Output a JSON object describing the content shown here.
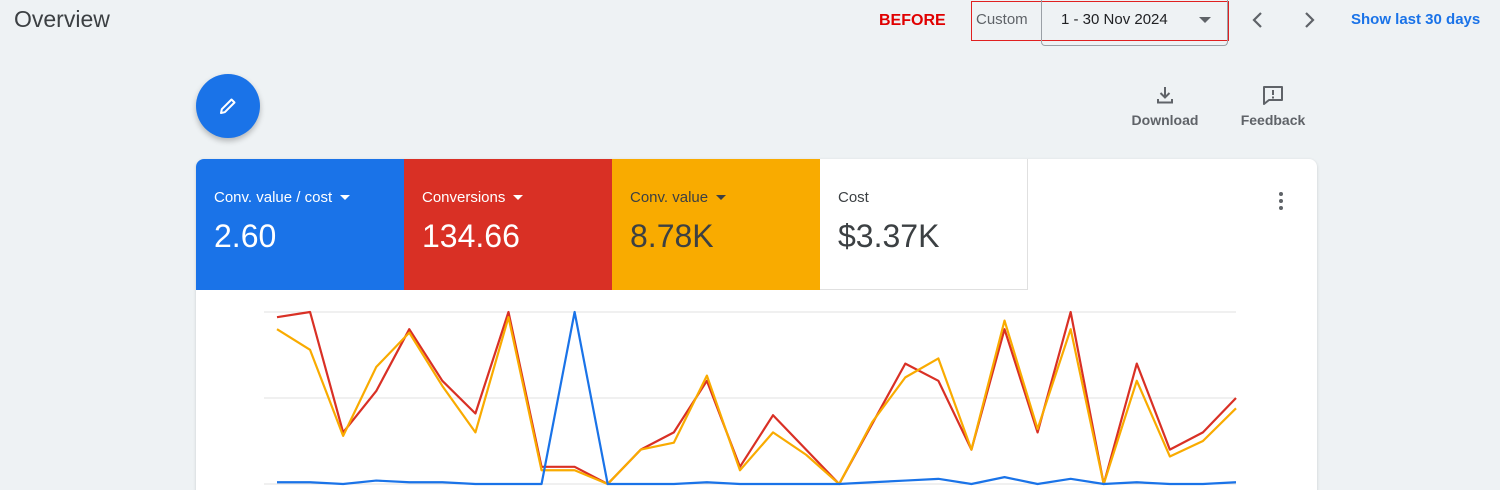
{
  "header": {
    "title": "Overview",
    "annotation": "BEFORE",
    "date_mode": "Custom",
    "date_range": "1 - 30 Nov 2024",
    "show_last": "Show last 30 days"
  },
  "toolbar": {
    "download_label": "Download",
    "feedback_label": "Feedback"
  },
  "metrics": [
    {
      "name": "Conv. value / cost",
      "value": "2.60",
      "color": "#1a73e8"
    },
    {
      "name": "Conversions",
      "value": "134.66",
      "color": "#d93025"
    },
    {
      "name": "Conv. value",
      "value": "8.78K",
      "color": "#f9ab00"
    },
    {
      "name": "Cost",
      "value": "$3.37K",
      "color": "#ffffff"
    }
  ],
  "chart_data": {
    "type": "line",
    "x": [
      1,
      2,
      3,
      4,
      5,
      6,
      7,
      8,
      9,
      10,
      11,
      12,
      13,
      14,
      15,
      16,
      17,
      18,
      19,
      20,
      21,
      22,
      23,
      24,
      25,
      26,
      27,
      28,
      29,
      30
    ],
    "ylim": [
      0,
      1
    ],
    "grid": true,
    "series": [
      {
        "color": "#d93025",
        "values": [
          0.97,
          1.0,
          0.3,
          0.54,
          0.9,
          0.6,
          0.41,
          1.0,
          0.1,
          0.1,
          0.0,
          0.2,
          0.3,
          0.6,
          0.1,
          0.4,
          0.2,
          0.0,
          0.35,
          0.7,
          0.6,
          0.2,
          0.9,
          0.3,
          1.0,
          0.0,
          0.7,
          0.2,
          0.3,
          0.5
        ]
      },
      {
        "color": "#f9ab00",
        "values": [
          0.9,
          0.78,
          0.28,
          0.68,
          0.88,
          0.57,
          0.3,
          0.97,
          0.08,
          0.08,
          0.0,
          0.2,
          0.24,
          0.63,
          0.08,
          0.3,
          0.17,
          0.0,
          0.36,
          0.62,
          0.73,
          0.2,
          0.95,
          0.32,
          0.9,
          0.0,
          0.6,
          0.16,
          0.25,
          0.44
        ]
      },
      {
        "color": "#1a73e8",
        "values": [
          0.01,
          0.01,
          0.0,
          0.02,
          0.01,
          0.01,
          0.0,
          0.0,
          0.0,
          1.0,
          0.0,
          0.0,
          0.0,
          0.01,
          0.0,
          0.0,
          0.0,
          0.0,
          0.01,
          0.02,
          0.03,
          0.0,
          0.04,
          0.0,
          0.03,
          0.0,
          0.01,
          0.0,
          0.0,
          0.01
        ]
      }
    ]
  }
}
